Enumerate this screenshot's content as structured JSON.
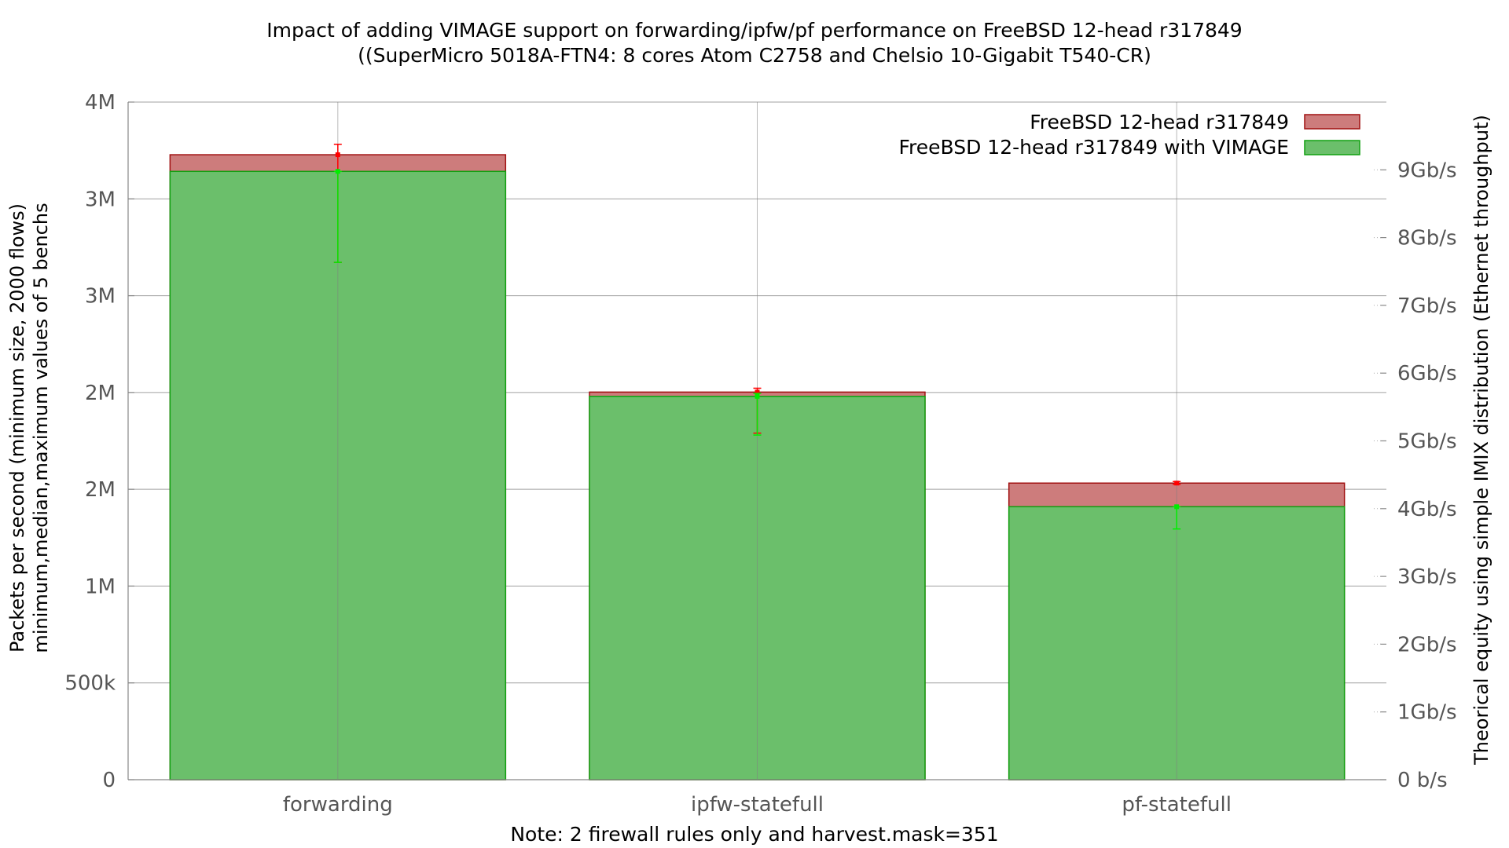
{
  "chart_data": {
    "type": "bar",
    "title": "Impact of adding VIMAGE support on forwarding/ipfw/pf performance on FreeBSD 12-head r317849",
    "subtitle": "((SuperMicro 5018A-FTN4: 8 cores Atom C2758 and Chelsio 10-Gigabit T540-CR)",
    "ylabel_line1": "Packets per second (minimum size, 2000 flows)",
    "ylabel_line2": "minimum,median,maximum values of 5 benchs",
    "y2label": "Theorical equity using simple IMIX distribution (Ethernet throughput)",
    "xlabel": "Note: 2 firewall rules only and harvest.mask=351",
    "ylim": [
      0,
      3500000
    ],
    "y2lim": [
      0,
      10000000000
    ],
    "grid": true,
    "legend_position": "top-right",
    "categories": [
      "forwarding",
      "ipfw-statefull",
      "pf-statefull"
    ],
    "yticks": [
      {
        "value": 0,
        "label": "0"
      },
      {
        "value": 500000,
        "label": "500k"
      },
      {
        "value": 1000000,
        "label": "1M"
      },
      {
        "value": 1500000,
        "label": "2M"
      },
      {
        "value": 2000000,
        "label": "2M"
      },
      {
        "value": 2500000,
        "label": "3M"
      },
      {
        "value": 3000000,
        "label": "3M"
      },
      {
        "value": 3500000,
        "label": "4M"
      }
    ],
    "y2ticks": [
      {
        "value": 0,
        "label": "0 b/s"
      },
      {
        "value": 1000000000,
        "label": "1Gb/s"
      },
      {
        "value": 2000000000,
        "label": "2Gb/s"
      },
      {
        "value": 3000000000,
        "label": "3Gb/s"
      },
      {
        "value": 4000000000,
        "label": "4Gb/s"
      },
      {
        "value": 5000000000,
        "label": "5Gb/s"
      },
      {
        "value": 6000000000,
        "label": "6Gb/s"
      },
      {
        "value": 7000000000,
        "label": "7Gb/s"
      },
      {
        "value": 8000000000,
        "label": "8Gb/s"
      },
      {
        "value": 9000000000,
        "label": "9Gb/s"
      }
    ],
    "series": [
      {
        "name": "FreeBSD 12-head r317849",
        "fill": "#cd7c7c",
        "stroke": "#a01010",
        "errorbar_color": "#ff0000",
        "values": [
          3228000,
          2002000,
          1532000
        ],
        "min": [
          2672000,
          1790000,
          1525000
        ],
        "max": [
          3282000,
          2022000,
          1540000
        ]
      },
      {
        "name": "FreeBSD 12-head r317849  with VIMAGE",
        "fill": "#6bbf6b",
        "stroke": "#10a010",
        "errorbar_color": "#00ee00",
        "values": [
          3142000,
          1980000,
          1410000
        ],
        "min": [
          2672000,
          1780000,
          1295000
        ],
        "max": [
          3142000,
          1995000,
          1410000
        ]
      }
    ]
  }
}
